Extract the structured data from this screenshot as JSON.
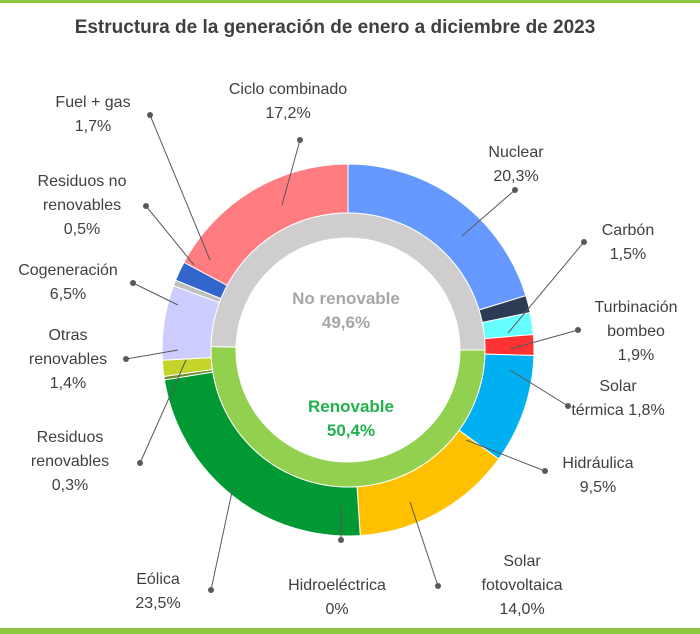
{
  "chart_data": {
    "type": "pie",
    "title": "Estructura de la generación de enero a diciembre de 2023",
    "inner_ring": [
      {
        "label": "No renovable",
        "value": "49,6%",
        "share": 49.6,
        "color": "#cfcdcd",
        "text_color": "#a6a6a6"
      },
      {
        "label": "Renovable",
        "value": "50,4%",
        "share": 50.4,
        "color": "#92d050",
        "text_color": "#22b14c"
      }
    ],
    "outer_ring": [
      {
        "label": "Nuclear",
        "value": "20,3%",
        "share": 20.3,
        "color": "#6699ff"
      },
      {
        "label": "Carbón",
        "value": "1,5%",
        "share": 1.5,
        "color": "#2c3a54"
      },
      {
        "label": "Turbinación bombeo",
        "value": "1,9%",
        "share": 1.9,
        "color": "#66ffff"
      },
      {
        "label": "Solar térmica",
        "value": "1,8%",
        "share": 1.8,
        "color": "#ff3333"
      },
      {
        "label": "Hidráulica",
        "value": "9,5%",
        "share": 9.5,
        "color": "#00b0f0"
      },
      {
        "label": "Solar fotovoltaica",
        "value": "14,0%",
        "share": 14.0,
        "color": "#ffc000"
      },
      {
        "label": "Hidroeléctrica",
        "value": "0%",
        "share": 0.0,
        "color": "#e0e0e0"
      },
      {
        "label": "Eólica",
        "value": "23,5%",
        "share": 23.5,
        "color": "#009933"
      },
      {
        "label": "Residuos renovables",
        "value": "0,3%",
        "share": 0.3,
        "color": "#6e8c2c"
      },
      {
        "label": "Otras renovables",
        "value": "1,4%",
        "share": 1.4,
        "color": "#c5d42a"
      },
      {
        "label": "Cogeneración",
        "value": "6,5%",
        "share": 6.5,
        "color": "#ccccff"
      },
      {
        "label": "Residuos no renovables",
        "value": "0,5%",
        "share": 0.5,
        "color": "#bfbfbf"
      },
      {
        "label": "Fuel + gas",
        "value": "1,7%",
        "share": 1.7,
        "color": "#3366cc"
      },
      {
        "label": "Ciclo combinado",
        "value": "17,2%",
        "share": 17.2,
        "color": "#ff7c80"
      }
    ],
    "label_lines": [
      {
        "key": "ciclo",
        "lines": [
          "Ciclo combinado",
          "17,2%"
        ]
      },
      {
        "key": "nuclear",
        "lines": [
          "Nuclear",
          "20,3%"
        ]
      },
      {
        "key": "carbon",
        "lines": [
          "Carbón",
          "1,5%"
        ]
      },
      {
        "key": "turbinacion",
        "lines": [
          "Turbinación",
          "bombeo",
          "1,9%"
        ]
      },
      {
        "key": "solar_termica",
        "lines": [
          "Solar",
          "térmica 1,8%"
        ]
      },
      {
        "key": "hidraulica",
        "lines": [
          "Hidráulica",
          "9,5%"
        ]
      },
      {
        "key": "solar_fv",
        "lines": [
          "Solar",
          "fotovoltaica",
          "14,0%"
        ]
      },
      {
        "key": "hidroelectrica",
        "lines": [
          "Hidroeléctrica",
          "0%"
        ]
      },
      {
        "key": "eolica",
        "lines": [
          "Eólica",
          "23,5%"
        ]
      },
      {
        "key": "residuos_ren",
        "lines": [
          "Residuos",
          "renovables",
          "0,3%"
        ]
      },
      {
        "key": "otras_ren",
        "lines": [
          "Otras",
          "renovables",
          "1,4%"
        ]
      },
      {
        "key": "cogeneracion",
        "lines": [
          "Cogeneración",
          "6,5%"
        ]
      },
      {
        "key": "residuos_no_ren",
        "lines": [
          "Residuos no",
          "renovables",
          "0,5%"
        ]
      },
      {
        "key": "fuel_gas",
        "lines": [
          "Fuel + gas",
          "1,7%"
        ]
      }
    ]
  }
}
